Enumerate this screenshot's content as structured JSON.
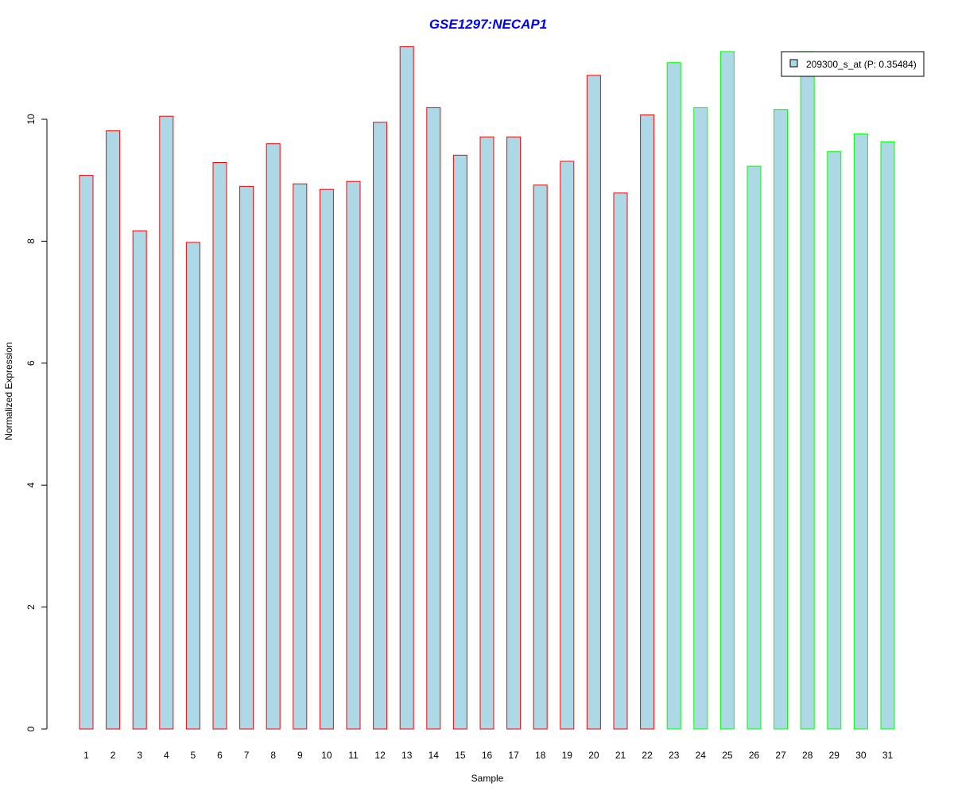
{
  "chart_data": {
    "type": "bar",
    "title": "GSE1297:NECAP1",
    "xlabel": "Sample",
    "ylabel": "Normalized Expression",
    "categories": [
      "1",
      "2",
      "3",
      "4",
      "5",
      "6",
      "7",
      "8",
      "9",
      "10",
      "11",
      "12",
      "13",
      "14",
      "15",
      "16",
      "17",
      "18",
      "19",
      "20",
      "21",
      "22",
      "23",
      "24",
      "25",
      "26",
      "27",
      "28",
      "29",
      "30",
      "31"
    ],
    "values": [
      9.08,
      9.81,
      8.17,
      10.05,
      7.98,
      9.29,
      8.9,
      9.6,
      8.94,
      8.85,
      8.98,
      9.95,
      11.19,
      10.19,
      9.41,
      9.71,
      9.71,
      8.92,
      9.31,
      10.72,
      8.79,
      10.07,
      10.93,
      10.19,
      11.11,
      9.23,
      10.16,
      11.11,
      9.47,
      9.76,
      9.63
    ],
    "groups": [
      "red",
      "red",
      "red",
      "red",
      "red",
      "red",
      "red",
      "red",
      "red",
      "red",
      "red",
      "red",
      "red",
      "red",
      "red",
      "red",
      "red",
      "red",
      "red",
      "red",
      "red",
      "red",
      "green",
      "green",
      "green",
      "green",
      "green",
      "green",
      "green",
      "green",
      "green"
    ],
    "yticks": [
      "0",
      "2",
      "4",
      "6",
      "8",
      "10"
    ],
    "ylim": [
      0,
      11.2
    ],
    "legend": {
      "label": "209300_s_at (P: 0.35484)",
      "placement": "top-right"
    },
    "colors": {
      "fill": "#add8e6",
      "border_group1": "#ff0000",
      "border_group2": "#00ff00",
      "title": "#0000ff",
      "axis": "#000000"
    }
  }
}
